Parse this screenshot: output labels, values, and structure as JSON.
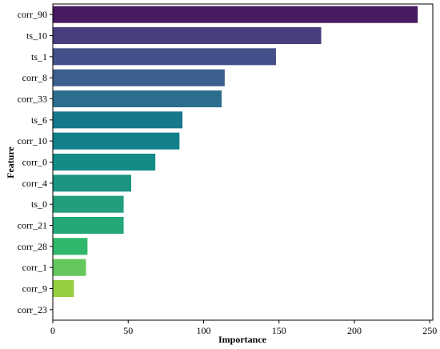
{
  "chart_data": {
    "type": "bar",
    "orientation": "horizontal",
    "xlabel": "Importance",
    "ylabel": "Feature",
    "xlim": [
      0,
      252
    ],
    "xticks": [
      0,
      50,
      100,
      150,
      200,
      250
    ],
    "grid": false,
    "legend": "none",
    "categories": [
      "corr_90",
      "ts_10",
      "ts_1",
      "corr_8",
      "corr_33",
      "ts_6",
      "corr_10",
      "corr_0",
      "corr_4",
      "ts_0",
      "corr_21",
      "corr_28",
      "corr_1",
      "corr_9",
      "corr_23"
    ],
    "values": [
      242,
      178,
      148,
      114,
      112,
      86,
      84,
      68,
      52,
      47,
      47,
      23,
      22,
      14,
      0
    ],
    "colors": [
      "#481b61",
      "#493d7e",
      "#45508a",
      "#3d5f8d",
      "#2d6e8e",
      "#17788b",
      "#11808a",
      "#138b87",
      "#1b9581",
      "#229d7d",
      "#24a878",
      "#2fb86b",
      "#64c75c",
      "#94d040",
      "#c5dd26"
    ]
  }
}
